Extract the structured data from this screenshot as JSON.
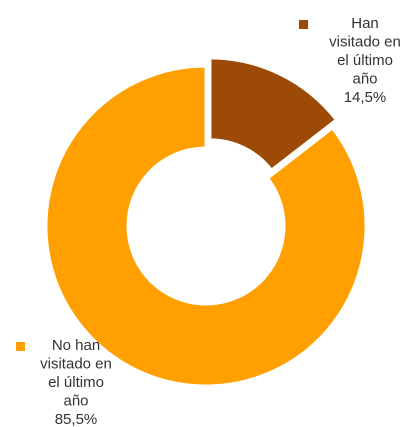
{
  "chart_data": {
    "type": "pie",
    "donut": true,
    "legend": "inline-labels",
    "slices": [
      {
        "key": "visited",
        "label_lines": [
          "Han",
          "visitado en",
          "el último",
          "año"
        ],
        "value": 14.5,
        "value_label": "14,5%",
        "color": "#9C4A06",
        "exploded": true
      },
      {
        "key": "not_visited",
        "label_lines": [
          "No han",
          "visitado en",
          "el último",
          "año"
        ],
        "value": 85.5,
        "value_label": "85,5%",
        "color": "#FF9F00",
        "exploded": false
      }
    ]
  }
}
